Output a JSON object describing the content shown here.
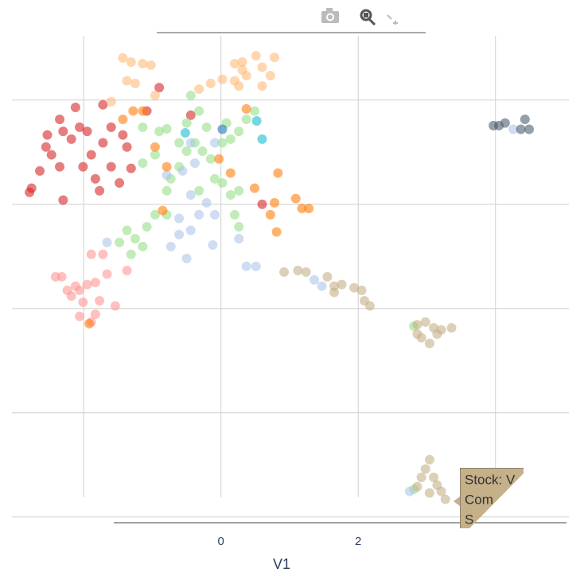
{
  "chart_data": {
    "type": "scatter",
    "x_label": "V1",
    "xlim": [
      -3.22,
      5.29
    ],
    "ylim": [
      -4.08,
      5.31
    ],
    "xticks": [
      0,
      2
    ],
    "x_grid": [
      -2,
      0,
      2,
      4
    ],
    "y_grid": [
      -4,
      -2,
      0,
      2,
      4
    ],
    "marker_opacity": 0.6,
    "series": [
      {
        "color": "#d62728",
        "x": [
          -2.76,
          -2.79,
          -2.53,
          -2.55,
          -2.47,
          -2.3,
          -2.18,
          -2.06,
          -1.95,
          -2.35,
          -2.12,
          -1.72,
          -2.01,
          -1.83,
          -1.77,
          -2.3,
          -1.6,
          -1.48,
          -1.37,
          -1.43,
          -1.31,
          -1.08,
          -0.9,
          -2.35,
          -1.89,
          -1.72,
          -0.44,
          0.6,
          -1.6,
          -2.64
        ],
        "values": [
          2.31,
          2.23,
          3.33,
          3.1,
          2.95,
          3.4,
          3.25,
          3.48,
          3.4,
          3.63,
          3.86,
          3.91,
          2.72,
          2.49,
          2.26,
          2.08,
          2.72,
          2.41,
          3.1,
          3.33,
          2.69,
          3.79,
          4.24,
          2.72,
          2.95,
          3.18,
          3.71,
          2.0,
          3.48,
          2.64
        ]
      },
      {
        "color": "#ff9896",
        "x": [
          -2.41,
          -2.32,
          -2.12,
          -1.95,
          -1.83,
          -2.18,
          -2.01,
          -1.77,
          -1.54,
          -2.06,
          -1.89,
          -1.83,
          -1.66,
          -1.37,
          -1.89,
          -1.72,
          -2.24,
          -2.06
        ],
        "values": [
          0.61,
          0.61,
          0.43,
          0.46,
          0.5,
          0.24,
          0.12,
          0.15,
          0.05,
          -0.15,
          -0.26,
          -0.11,
          0.66,
          0.73,
          1.04,
          1.04,
          0.35,
          0.35
        ]
      },
      {
        "color": "#ffbb78",
        "x": [
          -1.43,
          -1.31,
          -1.14,
          -1.02,
          -1.37,
          -1.25,
          -0.96,
          -0.32,
          -0.15,
          0.02,
          0.2,
          0.31,
          0.51,
          0.6,
          0.78,
          0.37,
          0.6,
          0.26,
          -1.6,
          0.31,
          0.72,
          0.2
        ],
        "values": [
          4.81,
          4.73,
          4.7,
          4.67,
          4.37,
          4.32,
          4.09,
          4.21,
          4.32,
          4.4,
          4.7,
          4.73,
          4.85,
          4.63,
          4.82,
          4.47,
          4.27,
          4.27,
          3.97,
          4.58,
          4.47,
          4.37
        ]
      },
      {
        "color": "#98df8a",
        "x": [
          -1.48,
          -1.37,
          -1.25,
          -1.14,
          -1.08,
          -0.96,
          -0.79,
          -0.73,
          -0.61,
          -0.5,
          -0.38,
          -0.27,
          -0.15,
          0.02,
          0.14,
          0.26,
          0.37,
          0.49,
          -0.32,
          -0.21,
          -0.5,
          -0.79,
          -0.9,
          -1.14,
          0.14,
          0.26,
          0.2,
          0.26,
          -1.14,
          -0.96,
          -0.09,
          -0.32,
          0.02,
          -0.61,
          -1.31,
          0.08,
          -0.44,
          2.81,
          2.81,
          -0.79
        ],
        "values": [
          1.27,
          1.5,
          1.34,
          1.19,
          1.57,
          1.8,
          2.26,
          2.49,
          2.72,
          3.02,
          3.18,
          3.02,
          2.87,
          3.18,
          3.25,
          3.4,
          3.63,
          3.79,
          3.79,
          3.48,
          3.56,
          3.45,
          3.4,
          3.48,
          2.18,
          2.26,
          1.8,
          1.57,
          2.79,
          2.95,
          2.49,
          2.26,
          2.41,
          3.18,
          1.04,
          3.56,
          4.09,
          -0.34,
          -3.47,
          1.8
        ]
      },
      {
        "color": "#aec7e8",
        "x": [
          -1.66,
          -0.73,
          -0.61,
          -0.5,
          -0.44,
          -0.32,
          -0.21,
          -0.09,
          -0.12,
          -0.44,
          -0.56,
          -0.38,
          0.26,
          0.37,
          0.51,
          1.36,
          1.47,
          -0.44,
          -0.09,
          -0.79,
          4.26,
          2.75,
          -0.61
        ],
        "values": [
          1.27,
          1.19,
          1.42,
          0.96,
          1.5,
          1.8,
          2.03,
          1.8,
          1.22,
          2.18,
          2.64,
          2.79,
          1.34,
          0.81,
          0.81,
          0.55,
          0.43,
          3.18,
          3.18,
          2.56,
          3.44,
          -3.51,
          1.73
        ]
      },
      {
        "color": "#ff7f0e",
        "x": [
          -1.92,
          -1.28,
          -1.14,
          -1.43,
          -0.96,
          -0.79,
          0.14,
          -0.03,
          0.49,
          0.83,
          0.78,
          0.72,
          1.09,
          1.18,
          1.28,
          0.81,
          0.37,
          -0.85
        ],
        "values": [
          -0.29,
          3.79,
          3.79,
          3.63,
          3.1,
          2.72,
          2.6,
          2.87,
          2.31,
          2.6,
          2.03,
          1.8,
          2.11,
          1.92,
          1.92,
          1.47,
          3.83,
          1.88
        ]
      },
      {
        "color": "#c4b089",
        "x": [
          0.92,
          1.12,
          1.24,
          1.55,
          1.65,
          1.65,
          1.76,
          1.94,
          2.05,
          2.09,
          2.17,
          2.86,
          2.98,
          3.1,
          3.21,
          3.36,
          2.92,
          3.04,
          3.15,
          2.86,
          3.04,
          2.98,
          3.1,
          2.92,
          3.15,
          3.27,
          2.86,
          3.04,
          3.21
        ],
        "values": [
          0.7,
          0.73,
          0.7,
          0.61,
          0.43,
          0.31,
          0.46,
          0.4,
          0.35,
          0.15,
          0.05,
          -0.31,
          -0.26,
          -0.37,
          -0.41,
          -0.37,
          -0.56,
          -0.67,
          -0.49,
          -0.49,
          -2.9,
          -3.08,
          -3.24,
          -3.24,
          -3.39,
          -3.66,
          -3.42,
          -3.54,
          -3.51
        ]
      },
      {
        "color": "#4f5f70",
        "x": [
          3.97,
          4.05,
          4.14,
          4.37,
          4.49,
          4.43
        ],
        "values": [
          3.51,
          3.51,
          3.56,
          3.44,
          3.44,
          3.63
        ]
      },
      {
        "color": "#17becf",
        "x": [
          -0.52,
          0.52,
          0.6
        ],
        "values": [
          3.37,
          3.6,
          3.25
        ]
      },
      {
        "color": "#1f77b4",
        "x": [
          0.02
        ],
        "values": [
          3.44
        ]
      }
    ],
    "tooltip": {
      "lines": [
        "Stock: V",
        "Com",
        "S"
      ],
      "color": "#c4b089"
    }
  }
}
